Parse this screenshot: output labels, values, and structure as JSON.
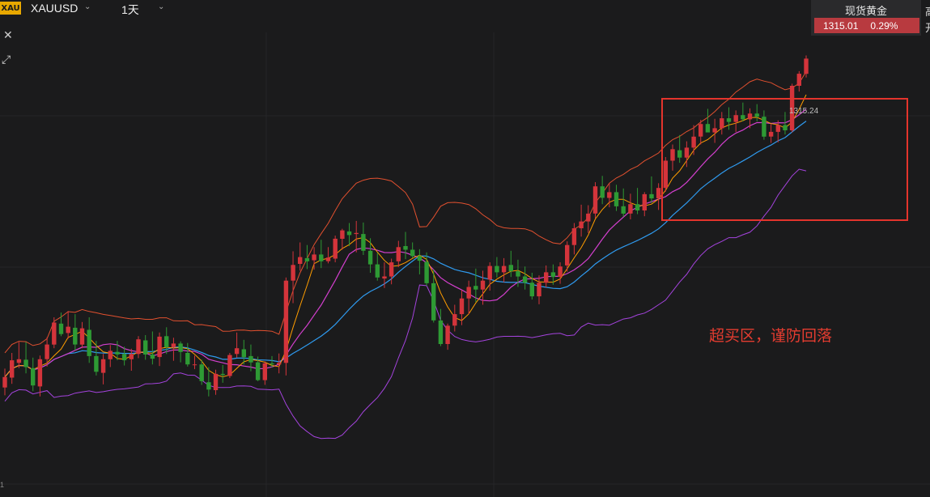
{
  "header": {
    "logo_text": "XAU",
    "symbol": "XAUUSD",
    "period": "1天",
    "caret_icon": "chevron-down-icon"
  },
  "side_tools": {
    "close_icon": "close-icon",
    "expand_icon": "expand-icon"
  },
  "quote": {
    "name": "现货黄金",
    "price": "1315.01",
    "change": "0.29%",
    "bar_color": "#b83a3f",
    "cut_text_1": "高",
    "cut_text_2": "开"
  },
  "colors": {
    "background": "#1b1b1c",
    "up": "#d4343b",
    "down": "#2e9a34",
    "upper_band": "#e1502f",
    "lower_band": "#a443dd",
    "ma_fast": "#ff9d00",
    "ma_mid": "#d33fce",
    "ma_slow": "#2f9bf0",
    "annotation": "#e43c30"
  },
  "annotation": {
    "text": "超买区，谨防回落"
  },
  "chart_data": {
    "type": "candlestick",
    "last_price_label": "1315.24",
    "edge_tick": "1",
    "ylim": [
      1235,
      1320
    ],
    "series": [
      {
        "name": "",
        "color": "#2e9a34",
        "kind": "candles"
      }
    ],
    "candles": [
      [
        1252.2,
        1255.8,
        1250.7,
        1254.2
      ],
      [
        1254.1,
        1258.8,
        1252.9,
        1257.4
      ],
      [
        1256.9,
        1260.9,
        1255.9,
        1257.6
      ],
      [
        1257.5,
        1260.9,
        1254.9,
        1256.1
      ],
      [
        1255.9,
        1257.9,
        1251.5,
        1252.6
      ],
      [
        1252.4,
        1258.3,
        1250.5,
        1257.6
      ],
      [
        1257.6,
        1261.8,
        1256.2,
        1260.4
      ],
      [
        1260.4,
        1265.6,
        1259.7,
        1264.6
      ],
      [
        1264.4,
        1266.5,
        1262.0,
        1262.4
      ],
      [
        1262.6,
        1266.8,
        1261.5,
        1263.8
      ],
      [
        1263.6,
        1266.2,
        1259.3,
        1260.4
      ],
      [
        1260.4,
        1264.7,
        1259.7,
        1263.5
      ],
      [
        1263.2,
        1265.6,
        1256.9,
        1258.2
      ],
      [
        1258.2,
        1261.1,
        1254.5,
        1255.2
      ],
      [
        1255.0,
        1258.6,
        1252.8,
        1257.6
      ],
      [
        1257.6,
        1260.3,
        1256.1,
        1259.2
      ],
      [
        1259.0,
        1261.1,
        1257.4,
        1258.5
      ],
      [
        1258.6,
        1260.0,
        1256.4,
        1257.4
      ],
      [
        1257.6,
        1259.6,
        1255.4,
        1258.6
      ],
      [
        1258.6,
        1262.0,
        1257.8,
        1261.4
      ],
      [
        1261.2,
        1262.2,
        1257.5,
        1258.5
      ],
      [
        1258.5,
        1262.9,
        1256.6,
        1257.7
      ],
      [
        1258.0,
        1262.7,
        1256.3,
        1261.9
      ],
      [
        1262.0,
        1263.7,
        1258.6,
        1259.9
      ],
      [
        1259.9,
        1261.7,
        1257.3,
        1260.6
      ],
      [
        1260.6,
        1261.0,
        1257.0,
        1259.0
      ],
      [
        1258.8,
        1260.7,
        1256.2,
        1256.6
      ],
      [
        1256.6,
        1258.3,
        1255.7,
        1256.6
      ],
      [
        1256.6,
        1257.5,
        1252.7,
        1253.4
      ],
      [
        1253.2,
        1256.1,
        1250.5,
        1251.8
      ],
      [
        1251.7,
        1255.6,
        1250.8,
        1254.8
      ],
      [
        1254.8,
        1256.5,
        1253.1,
        1254.6
      ],
      [
        1254.4,
        1258.8,
        1254.0,
        1258.4
      ],
      [
        1258.6,
        1262.7,
        1257.9,
        1259.7
      ],
      [
        1259.5,
        1261.3,
        1256.6,
        1258.0
      ],
      [
        1258.2,
        1260.4,
        1255.3,
        1257.0
      ],
      [
        1257.0,
        1258.1,
        1253.4,
        1253.6
      ],
      [
        1253.6,
        1257.2,
        1252.7,
        1256.8
      ],
      [
        1256.8,
        1258.2,
        1256.0,
        1256.6
      ],
      [
        1256.6,
        1258.7,
        1254.9,
        1256.9
      ],
      [
        1256.9,
        1273.2,
        1254.5,
        1272.6
      ],
      [
        1272.6,
        1278.2,
        1268.3,
        1275.6
      ],
      [
        1275.8,
        1279.9,
        1274.5,
        1277.1
      ],
      [
        1276.9,
        1279.4,
        1274.8,
        1276.3
      ],
      [
        1276.5,
        1279.0,
        1274.7,
        1277.6
      ],
      [
        1277.6,
        1280.4,
        1275.0,
        1276.3
      ],
      [
        1276.3,
        1279.0,
        1275.9,
        1277.0
      ],
      [
        1276.8,
        1281.2,
        1276.1,
        1280.6
      ],
      [
        1280.6,
        1282.5,
        1278.5,
        1282.2
      ],
      [
        1282.0,
        1283.6,
        1279.2,
        1281.3
      ],
      [
        1281.5,
        1284.0,
        1278.0,
        1281.7
      ],
      [
        1281.5,
        1283.7,
        1277.5,
        1278.3
      ],
      [
        1278.3,
        1280.7,
        1274.1,
        1275.7
      ],
      [
        1275.7,
        1277.9,
        1272.6,
        1273.2
      ],
      [
        1273.0,
        1276.1,
        1271.2,
        1273.4
      ],
      [
        1273.4,
        1276.8,
        1271.9,
        1276.1
      ],
      [
        1276.3,
        1280.2,
        1275.2,
        1279.0
      ],
      [
        1279.2,
        1281.9,
        1276.7,
        1278.5
      ],
      [
        1278.5,
        1279.9,
        1276.9,
        1277.3
      ],
      [
        1277.3,
        1278.6,
        1273.8,
        1276.4
      ],
      [
        1276.2,
        1278.0,
        1271.6,
        1272.1
      ],
      [
        1272.1,
        1274.7,
        1264.6,
        1265.0
      ],
      [
        1265.0,
        1267.2,
        1260.1,
        1260.5
      ],
      [
        1260.5,
        1264.4,
        1259.4,
        1264.0
      ],
      [
        1264.0,
        1268.0,
        1262.9,
        1266.2
      ],
      [
        1266.2,
        1270.8,
        1264.1,
        1269.2
      ],
      [
        1269.2,
        1272.6,
        1266.2,
        1271.4
      ],
      [
        1271.6,
        1274.9,
        1268.5,
        1270.9
      ],
      [
        1270.9,
        1274.5,
        1268.0,
        1272.6
      ],
      [
        1272.8,
        1276.1,
        1270.7,
        1275.4
      ],
      [
        1275.4,
        1277.1,
        1273.2,
        1274.2
      ],
      [
        1274.2,
        1276.9,
        1272.3,
        1275.4
      ],
      [
        1275.6,
        1278.3,
        1273.3,
        1274.4
      ],
      [
        1274.4,
        1276.6,
        1271.4,
        1273.4
      ],
      [
        1273.4,
        1275.3,
        1270.9,
        1272.2
      ],
      [
        1272.2,
        1274.1,
        1269.0,
        1269.6
      ],
      [
        1269.6,
        1273.6,
        1268.1,
        1272.2
      ],
      [
        1272.2,
        1275.5,
        1271.3,
        1274.2
      ],
      [
        1274.2,
        1275.7,
        1271.8,
        1273.3
      ],
      [
        1273.3,
        1276.1,
        1272.0,
        1275.3
      ],
      [
        1275.5,
        1280.1,
        1274.3,
        1279.4
      ],
      [
        1279.4,
        1283.6,
        1277.6,
        1282.6
      ],
      [
        1282.6,
        1287.1,
        1281.0,
        1283.9
      ],
      [
        1283.9,
        1287.0,
        1281.7,
        1285.4
      ],
      [
        1285.4,
        1291.4,
        1284.5,
        1290.6
      ],
      [
        1290.6,
        1292.6,
        1287.2,
        1288.4
      ],
      [
        1288.4,
        1291.2,
        1286.6,
        1289.5
      ],
      [
        1289.5,
        1290.9,
        1285.9,
        1286.8
      ],
      [
        1286.8,
        1290.2,
        1284.8,
        1285.4
      ],
      [
        1285.4,
        1289.2,
        1284.3,
        1287.2
      ],
      [
        1287.2,
        1290.3,
        1285.3,
        1286.0
      ],
      [
        1286.0,
        1289.5,
        1284.9,
        1289.1
      ],
      [
        1289.1,
        1292.5,
        1287.4,
        1288.3
      ],
      [
        1288.3,
        1291.2,
        1286.1,
        1290.3
      ],
      [
        1290.3,
        1296.2,
        1289.6,
        1295.5
      ],
      [
        1295.5,
        1298.6,
        1293.6,
        1297.7
      ],
      [
        1297.5,
        1300.4,
        1295.1,
        1296.1
      ],
      [
        1296.1,
        1299.2,
        1294.3,
        1298.0
      ],
      [
        1298.0,
        1302.3,
        1296.6,
        1300.1
      ],
      [
        1300.1,
        1303.3,
        1298.6,
        1302.5
      ],
      [
        1302.5,
        1305.4,
        1301.1,
        1300.9
      ],
      [
        1300.9,
        1303.5,
        1298.9,
        1301.7
      ],
      [
        1301.7,
        1304.8,
        1300.5,
        1303.6
      ],
      [
        1303.6,
        1305.7,
        1301.4,
        1302.9
      ],
      [
        1302.9,
        1305.1,
        1301.0,
        1304.2
      ],
      [
        1304.2,
        1306.6,
        1303.0,
        1303.4
      ],
      [
        1303.4,
        1305.5,
        1301.7,
        1304.5
      ],
      [
        1304.5,
        1306.3,
        1303.0,
        1303.9
      ],
      [
        1303.9,
        1305.1,
        1299.5,
        1300.1
      ],
      [
        1300.1,
        1302.5,
        1298.9,
        1301.0
      ],
      [
        1301.0,
        1303.2,
        1299.0,
        1302.3
      ],
      [
        1302.3,
        1304.8,
        1300.5,
        1301.3
      ],
      [
        1301.3,
        1310.2,
        1300.9,
        1309.8
      ],
      [
        1309.8,
        1312.6,
        1308.7,
        1312.1
      ],
      [
        1312.1,
        1315.6,
        1311.4,
        1315.0
      ]
    ]
  }
}
